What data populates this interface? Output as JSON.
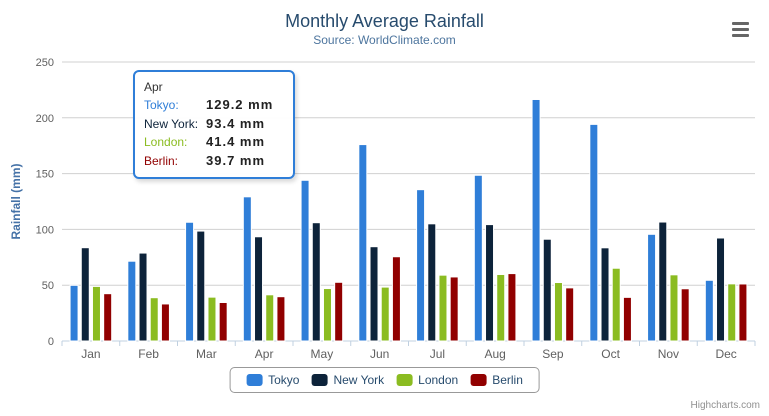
{
  "title": "Monthly Average Rainfall",
  "subtitle": "Source: WorldClimate.com",
  "y_axis": {
    "title": "Rainfall (mm)"
  },
  "chart_data": {
    "type": "bar",
    "title": "Monthly Average Rainfall",
    "subtitle": "Source: WorldClimate.com",
    "xlabel": "",
    "ylabel": "Rainfall (mm)",
    "ylim": [
      0,
      250
    ],
    "yticks": [
      0,
      50,
      100,
      150,
      200,
      250
    ],
    "grid": true,
    "legend_position": "bottom",
    "categories": [
      "Jan",
      "Feb",
      "Mar",
      "Apr",
      "May",
      "Jun",
      "Jul",
      "Aug",
      "Sep",
      "Oct",
      "Nov",
      "Dec"
    ],
    "series": [
      {
        "name": "Tokyo",
        "color": "#2f7ed8",
        "values": [
          49.9,
          71.5,
          106.4,
          129.2,
          144.0,
          176.0,
          135.6,
          148.5,
          216.4,
          194.1,
          95.6,
          54.4
        ]
      },
      {
        "name": "New York",
        "color": "#0d233a",
        "values": [
          83.6,
          78.8,
          98.5,
          93.4,
          106.0,
          84.5,
          105.0,
          104.3,
          91.2,
          83.5,
          106.6,
          92.3
        ]
      },
      {
        "name": "London",
        "color": "#8bbc21",
        "values": [
          48.9,
          38.8,
          39.3,
          41.4,
          47.0,
          48.3,
          59.0,
          59.6,
          52.4,
          65.2,
          59.3,
          51.2
        ]
      },
      {
        "name": "Berlin",
        "color": "#910000",
        "values": [
          42.4,
          33.2,
          34.5,
          39.7,
          52.6,
          75.5,
          57.4,
          60.4,
          47.6,
          39.1,
          46.8,
          51.1
        ]
      }
    ]
  },
  "tooltip": {
    "header": "Apr",
    "border_color": "#2f7ed8",
    "rows": [
      {
        "label": "Tokyo:",
        "value": "129.2 mm",
        "color": "#2f7ed8"
      },
      {
        "label": "New York:",
        "value": "93.4 mm",
        "color": "#0d233a"
      },
      {
        "label": "London:",
        "value": "41.4 mm",
        "color": "#8bbc21"
      },
      {
        "label": "Berlin:",
        "value": "39.7 mm",
        "color": "#910000"
      }
    ]
  },
  "legend": {
    "items": [
      {
        "label": "Tokyo",
        "color": "#2f7ed8"
      },
      {
        "label": "New York",
        "color": "#0d233a"
      },
      {
        "label": "London",
        "color": "#8bbc21"
      },
      {
        "label": "Berlin",
        "color": "#910000"
      }
    ]
  },
  "credits": "Highcharts.com",
  "colors": {
    "title": "#274b6d",
    "subtitle": "#4d759e",
    "axis_title": "#4572a7",
    "grid_line": "#d0d0d0",
    "axis_line": "#c0d0e0",
    "tick_label": "#606060",
    "bar_border": "#ffffff",
    "legend_border": "#999999",
    "menu_icon": "#666666",
    "credits_text": "#909090"
  }
}
